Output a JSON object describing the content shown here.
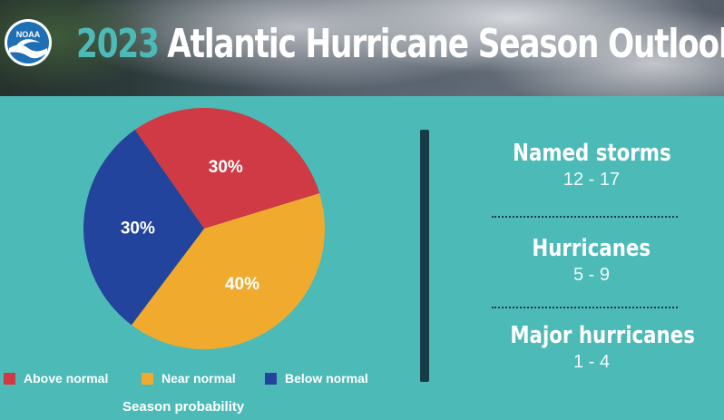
{
  "banner": {
    "title_year": "2023",
    "title_rest": "Atlantic Hurricane Season Outlook",
    "logo_text": "NOAA"
  },
  "chart_data": {
    "type": "pie",
    "slices": [
      {
        "label": "Above normal",
        "value": 30,
        "display": "30%",
        "color": "#cf3a44"
      },
      {
        "label": "Near normal",
        "value": 40,
        "display": "40%",
        "color": "#f0ab2e"
      },
      {
        "label": "Below normal",
        "value": 30,
        "display": "30%",
        "color": "#22449c"
      }
    ],
    "caption": "Season probability",
    "legend_position": "bottom"
  },
  "stats": [
    {
      "label": "Named storms",
      "value": "12 - 17"
    },
    {
      "label": "Hurricanes",
      "value": "5 - 9"
    },
    {
      "label": "Major hurricanes",
      "value": "1 - 4"
    }
  ],
  "colors": {
    "background": "#4cbab7",
    "divider": "#163c48",
    "year_accent": "#4cbab7"
  }
}
